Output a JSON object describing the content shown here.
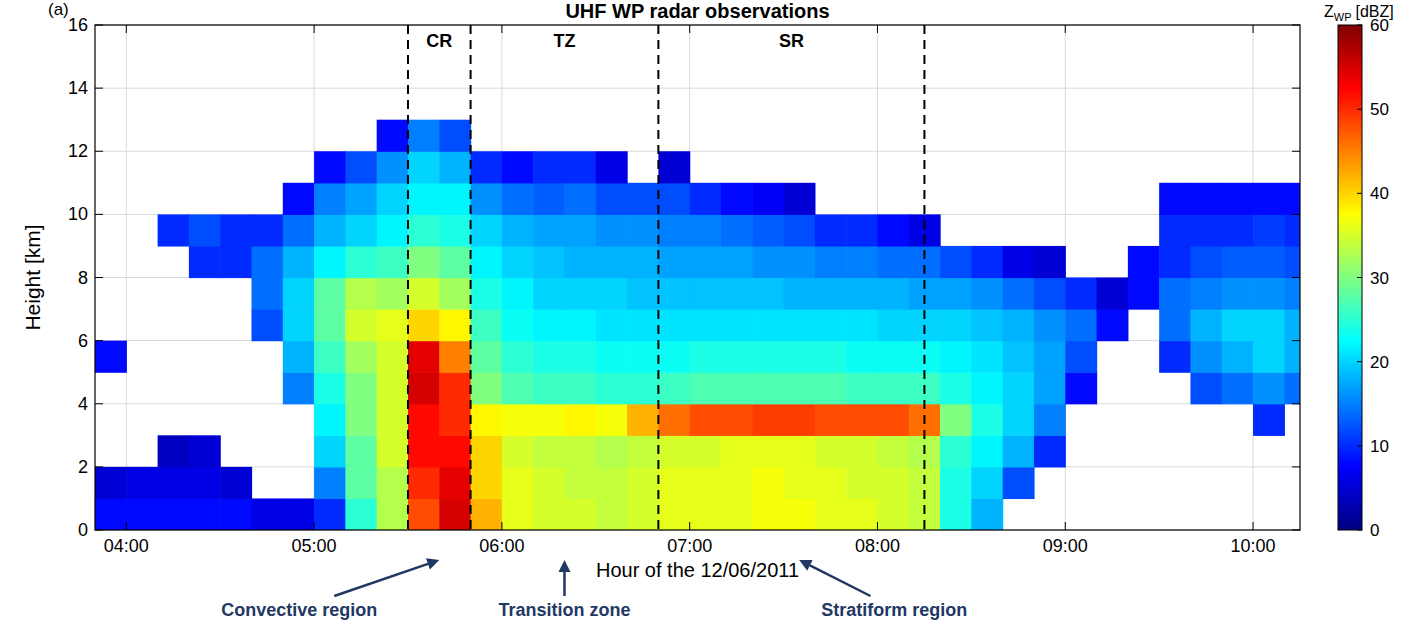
{
  "chart_data": {
    "type": "heatmap",
    "title": "UHF WP radar observations",
    "panel_label": "(a)",
    "xlabel": "Hour of the 12/06/2011",
    "ylabel": "Height [km]",
    "xlim": [
      230,
      615
    ],
    "ylim": [
      0,
      16
    ],
    "xticks": [
      {
        "value": 240,
        "label": "04:00"
      },
      {
        "value": 300,
        "label": "05:00"
      },
      {
        "value": 360,
        "label": "06:00"
      },
      {
        "value": 420,
        "label": "07:00"
      },
      {
        "value": 480,
        "label": "08:00"
      },
      {
        "value": 540,
        "label": "09:00"
      },
      {
        "value": 600,
        "label": "10:00"
      }
    ],
    "yticks": [
      0,
      2,
      4,
      6,
      8,
      10,
      12,
      14,
      16
    ],
    "grid": true,
    "x": [
      230,
      240,
      250,
      260,
      270,
      280,
      290,
      300,
      310,
      320,
      330,
      340,
      350,
      360,
      370,
      380,
      390,
      400,
      410,
      420,
      430,
      440,
      450,
      460,
      470,
      480,
      490,
      500,
      510,
      520,
      530,
      540,
      550,
      560,
      570,
      580,
      590,
      600,
      610
    ],
    "y": [
      0,
      1,
      2,
      3,
      4,
      5,
      6,
      7,
      8,
      9,
      10,
      11,
      12
    ],
    "z": [
      [
        8,
        8,
        8,
        8,
        8,
        6,
        6,
        10,
        25,
        33,
        48,
        55,
        42,
        36,
        35,
        35,
        34,
        35,
        36,
        36,
        36,
        37,
        37,
        36,
        36,
        35,
        34,
        24,
        18,
        null,
        null,
        null,
        null,
        null,
        null,
        null,
        null,
        null,
        null
      ],
      [
        5,
        6,
        6,
        6,
        5,
        null,
        null,
        15,
        28,
        33,
        50,
        54,
        40,
        36,
        35,
        34,
        34,
        35,
        36,
        36,
        36,
        37,
        36,
        36,
        35,
        35,
        34,
        24,
        20,
        12,
        null,
        null,
        null,
        null,
        null,
        null,
        null,
        null,
        null
      ],
      [
        null,
        null,
        4,
        5,
        null,
        null,
        null,
        20,
        28,
        35,
        52,
        52,
        40,
        35,
        34,
        34,
        33,
        34,
        35,
        35,
        36,
        36,
        36,
        35,
        35,
        34,
        33,
        25,
        22,
        18,
        10,
        null,
        null,
        null,
        null,
        null,
        null,
        null,
        null
      ],
      [
        null,
        null,
        null,
        null,
        null,
        null,
        null,
        22,
        30,
        35,
        52,
        50,
        38,
        37,
        37,
        38,
        37,
        42,
        46,
        48,
        48,
        49,
        49,
        48,
        48,
        48,
        46,
        30,
        24,
        20,
        15,
        null,
        null,
        null,
        null,
        null,
        null,
        10,
        null
      ],
      [
        null,
        null,
        null,
        null,
        null,
        null,
        15,
        24,
        30,
        35,
        55,
        50,
        30,
        27,
        26,
        26,
        25,
        25,
        26,
        27,
        27,
        27,
        27,
        27,
        26,
        26,
        26,
        24,
        22,
        20,
        17,
        8,
        null,
        null,
        null,
        12,
        14,
        16,
        14
      ],
      [
        8,
        null,
        null,
        null,
        null,
        null,
        18,
        26,
        32,
        35,
        54,
        45,
        28,
        25,
        24,
        24,
        23,
        23,
        23,
        24,
        24,
        24,
        24,
        24,
        23,
        23,
        23,
        22,
        21,
        19,
        17,
        12,
        null,
        null,
        10,
        16,
        18,
        20,
        18
      ],
      [
        null,
        null,
        null,
        null,
        null,
        12,
        20,
        28,
        35,
        36,
        40,
        38,
        26,
        23,
        22,
        22,
        21,
        21,
        21,
        21,
        21,
        21,
        21,
        21,
        21,
        20,
        20,
        20,
        19,
        18,
        16,
        14,
        8,
        null,
        14,
        18,
        20,
        20,
        18
      ],
      [
        null,
        null,
        null,
        null,
        null,
        14,
        20,
        28,
        33,
        32,
        35,
        32,
        24,
        22,
        20,
        20,
        20,
        19,
        19,
        19,
        19,
        19,
        18,
        18,
        18,
        18,
        17,
        17,
        16,
        14,
        12,
        10,
        5,
        8,
        14,
        15,
        16,
        16,
        15
      ],
      [
        null,
        null,
        null,
        10,
        10,
        14,
        18,
        22,
        25,
        26,
        30,
        28,
        22,
        20,
        19,
        18,
        18,
        18,
        17,
        17,
        17,
        16,
        16,
        15,
        15,
        14,
        14,
        12,
        10,
        6,
        5,
        null,
        null,
        8,
        10,
        12,
        13,
        13,
        12
      ],
      [
        null,
        null,
        10,
        12,
        10,
        10,
        14,
        18,
        20,
        22,
        25,
        24,
        20,
        18,
        17,
        17,
        16,
        16,
        15,
        15,
        14,
        13,
        12,
        10,
        10,
        8,
        6,
        null,
        null,
        null,
        null,
        null,
        null,
        null,
        10,
        10,
        10,
        11,
        10
      ],
      [
        null,
        null,
        null,
        null,
        null,
        null,
        8,
        15,
        17,
        20,
        22,
        22,
        16,
        14,
        13,
        14,
        12,
        12,
        12,
        10,
        8,
        7,
        5,
        null,
        null,
        null,
        null,
        null,
        null,
        null,
        null,
        null,
        null,
        null,
        8,
        8,
        8,
        8,
        8
      ],
      [
        null,
        null,
        null,
        null,
        null,
        null,
        null,
        8,
        12,
        16,
        20,
        18,
        10,
        8,
        10,
        10,
        6,
        null,
        5,
        null,
        null,
        null,
        null,
        null,
        null,
        null,
        null,
        null,
        null,
        null,
        null,
        null,
        null,
        null,
        null,
        null,
        null,
        null,
        null
      ],
      [
        null,
        null,
        null,
        null,
        null,
        null,
        null,
        null,
        null,
        8,
        15,
        12,
        null,
        null,
        null,
        null,
        null,
        null,
        null,
        null,
        null,
        null,
        null,
        null,
        null,
        null,
        null,
        null,
        null,
        null,
        null,
        null,
        null,
        null,
        null,
        null,
        null,
        null,
        null
      ]
    ],
    "colorbar": {
      "label": "Z",
      "label_subscript": "WP",
      "unit": "[dBZ]",
      "range": [
        0,
        60
      ],
      "ticks": [
        0,
        10,
        20,
        30,
        40,
        50,
        60
      ]
    },
    "regions": [
      {
        "label": "CR",
        "start": 330,
        "end": 350
      },
      {
        "label": "TZ",
        "start": 350,
        "end": 410
      },
      {
        "label": "SR",
        "start": 410,
        "end": 495
      }
    ],
    "annotations": [
      {
        "text": "Convective region",
        "x": 340
      },
      {
        "text": "Transition zone",
        "x": 380
      },
      {
        "text": "Stratiform region",
        "x": 455
      }
    ]
  }
}
